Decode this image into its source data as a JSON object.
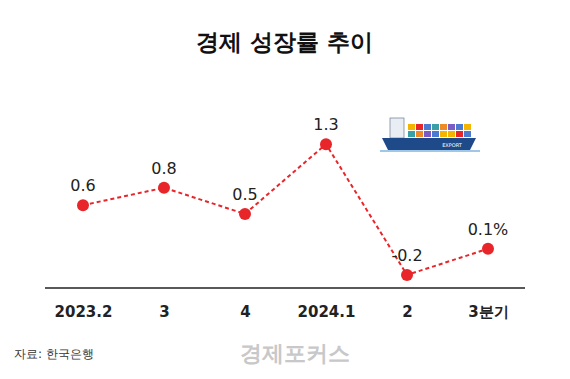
{
  "chart_data": {
    "type": "line",
    "title": "경제 성장률 추이",
    "categories": [
      "2023.2",
      "3",
      "4",
      "2024.1",
      "2",
      "3분기"
    ],
    "values": [
      0.6,
      0.8,
      0.5,
      1.3,
      -0.2,
      0.1
    ],
    "value_labels": [
      "0.6",
      "0.8",
      "0.5",
      "1.3",
      "-0.2",
      "0.1%"
    ],
    "color": "#e8262a",
    "line_style": "dashed",
    "marker": "circle",
    "ylim": [
      -0.35,
      1.6
    ],
    "data_labels": true,
    "tick_labels": "x",
    "grid": false,
    "annotations": [
      "EXPORT"
    ],
    "source": "자료: 한국은행",
    "watermark": "경제포커스"
  }
}
